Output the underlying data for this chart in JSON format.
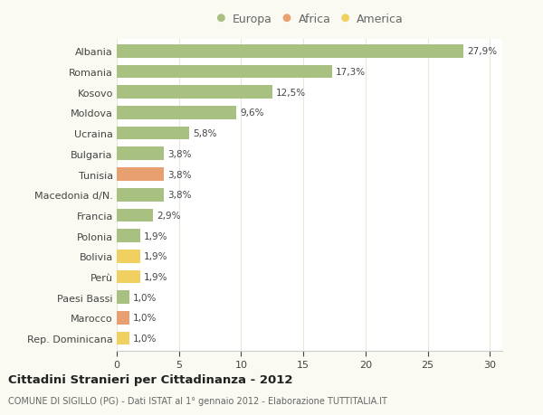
{
  "categories": [
    "Albania",
    "Romania",
    "Kosovo",
    "Moldova",
    "Ucraina",
    "Bulgaria",
    "Tunisia",
    "Macedonia d/N.",
    "Francia",
    "Polonia",
    "Bolivia",
    "Perù",
    "Paesi Bassi",
    "Marocco",
    "Rep. Dominicana"
  ],
  "values": [
    27.9,
    17.3,
    12.5,
    9.6,
    5.8,
    3.8,
    3.8,
    3.8,
    2.9,
    1.9,
    1.9,
    1.9,
    1.0,
    1.0,
    1.0
  ],
  "labels": [
    "27,9%",
    "17,3%",
    "12,5%",
    "9,6%",
    "5,8%",
    "3,8%",
    "3,8%",
    "3,8%",
    "2,9%",
    "1,9%",
    "1,9%",
    "1,9%",
    "1,0%",
    "1,0%",
    "1,0%"
  ],
  "continents": [
    "Europa",
    "Europa",
    "Europa",
    "Europa",
    "Europa",
    "Europa",
    "Africa",
    "Europa",
    "Europa",
    "Europa",
    "America",
    "America",
    "Europa",
    "Africa",
    "America"
  ],
  "colors": {
    "Europa": "#a8c080",
    "Africa": "#e8a070",
    "America": "#f0d060"
  },
  "title": "Cittadini Stranieri per Cittadinanza - 2012",
  "subtitle": "COMUNE DI SIGILLO (PG) - Dati ISTAT al 1° gennaio 2012 - Elaborazione TUTTITALIA.IT",
  "xlim": [
    0,
    31
  ],
  "background_color": "#fafaf2",
  "plot_background": "#ffffff",
  "grid_color": "#e8e8d8",
  "legend_circle_colors": {
    "Europa": "#a8c080",
    "Africa": "#e8a070",
    "America": "#f0d060"
  }
}
